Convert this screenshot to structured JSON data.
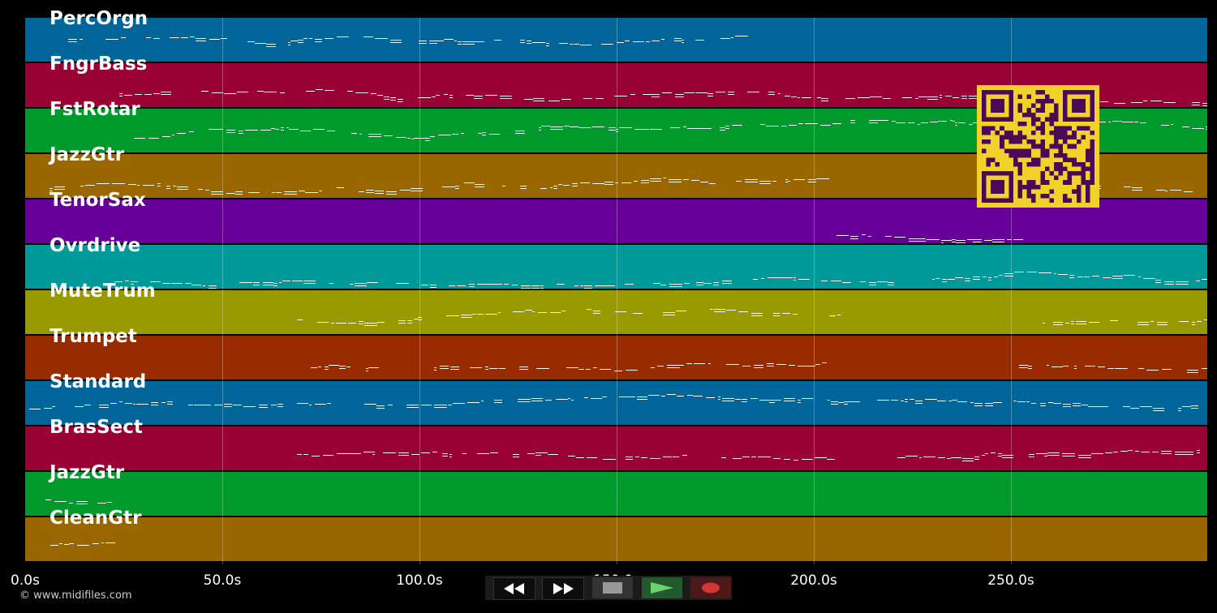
{
  "tracks": [
    {
      "name": "PercOrgn",
      "color": "#006699"
    },
    {
      "name": "FngrBass",
      "color": "#990033"
    },
    {
      "name": "FstRotar",
      "color": "#00992b"
    },
    {
      "name": "JazzGtr",
      "color": "#996600"
    },
    {
      "name": "TenorSax",
      "color": "#660099"
    },
    {
      "name": "Ovrdrive",
      "color": "#009999"
    },
    {
      "name": "MuteTrum",
      "color": "#999900"
    },
    {
      "name": "Trumpet",
      "color": "#992b00"
    },
    {
      "name": "Standard",
      "color": "#006699"
    },
    {
      "name": "BrasSect",
      "color": "#990033"
    },
    {
      "name": "JazzGtr",
      "color": "#00992b"
    },
    {
      "name": "CleanGtr",
      "color": "#996600"
    }
  ],
  "time_axis": {
    "ticks": [
      "0.0s",
      "50.0s",
      "100.0s",
      "150.0s",
      "200.0s",
      "250.0s"
    ]
  },
  "copyright": "© www.midifiles.com",
  "transport": {
    "buttons": [
      "rewind-icon",
      "fast-forward-icon",
      "stop-icon",
      "play-icon",
      "record-icon"
    ]
  },
  "qr_code": {
    "color": "#f2d22a"
  }
}
